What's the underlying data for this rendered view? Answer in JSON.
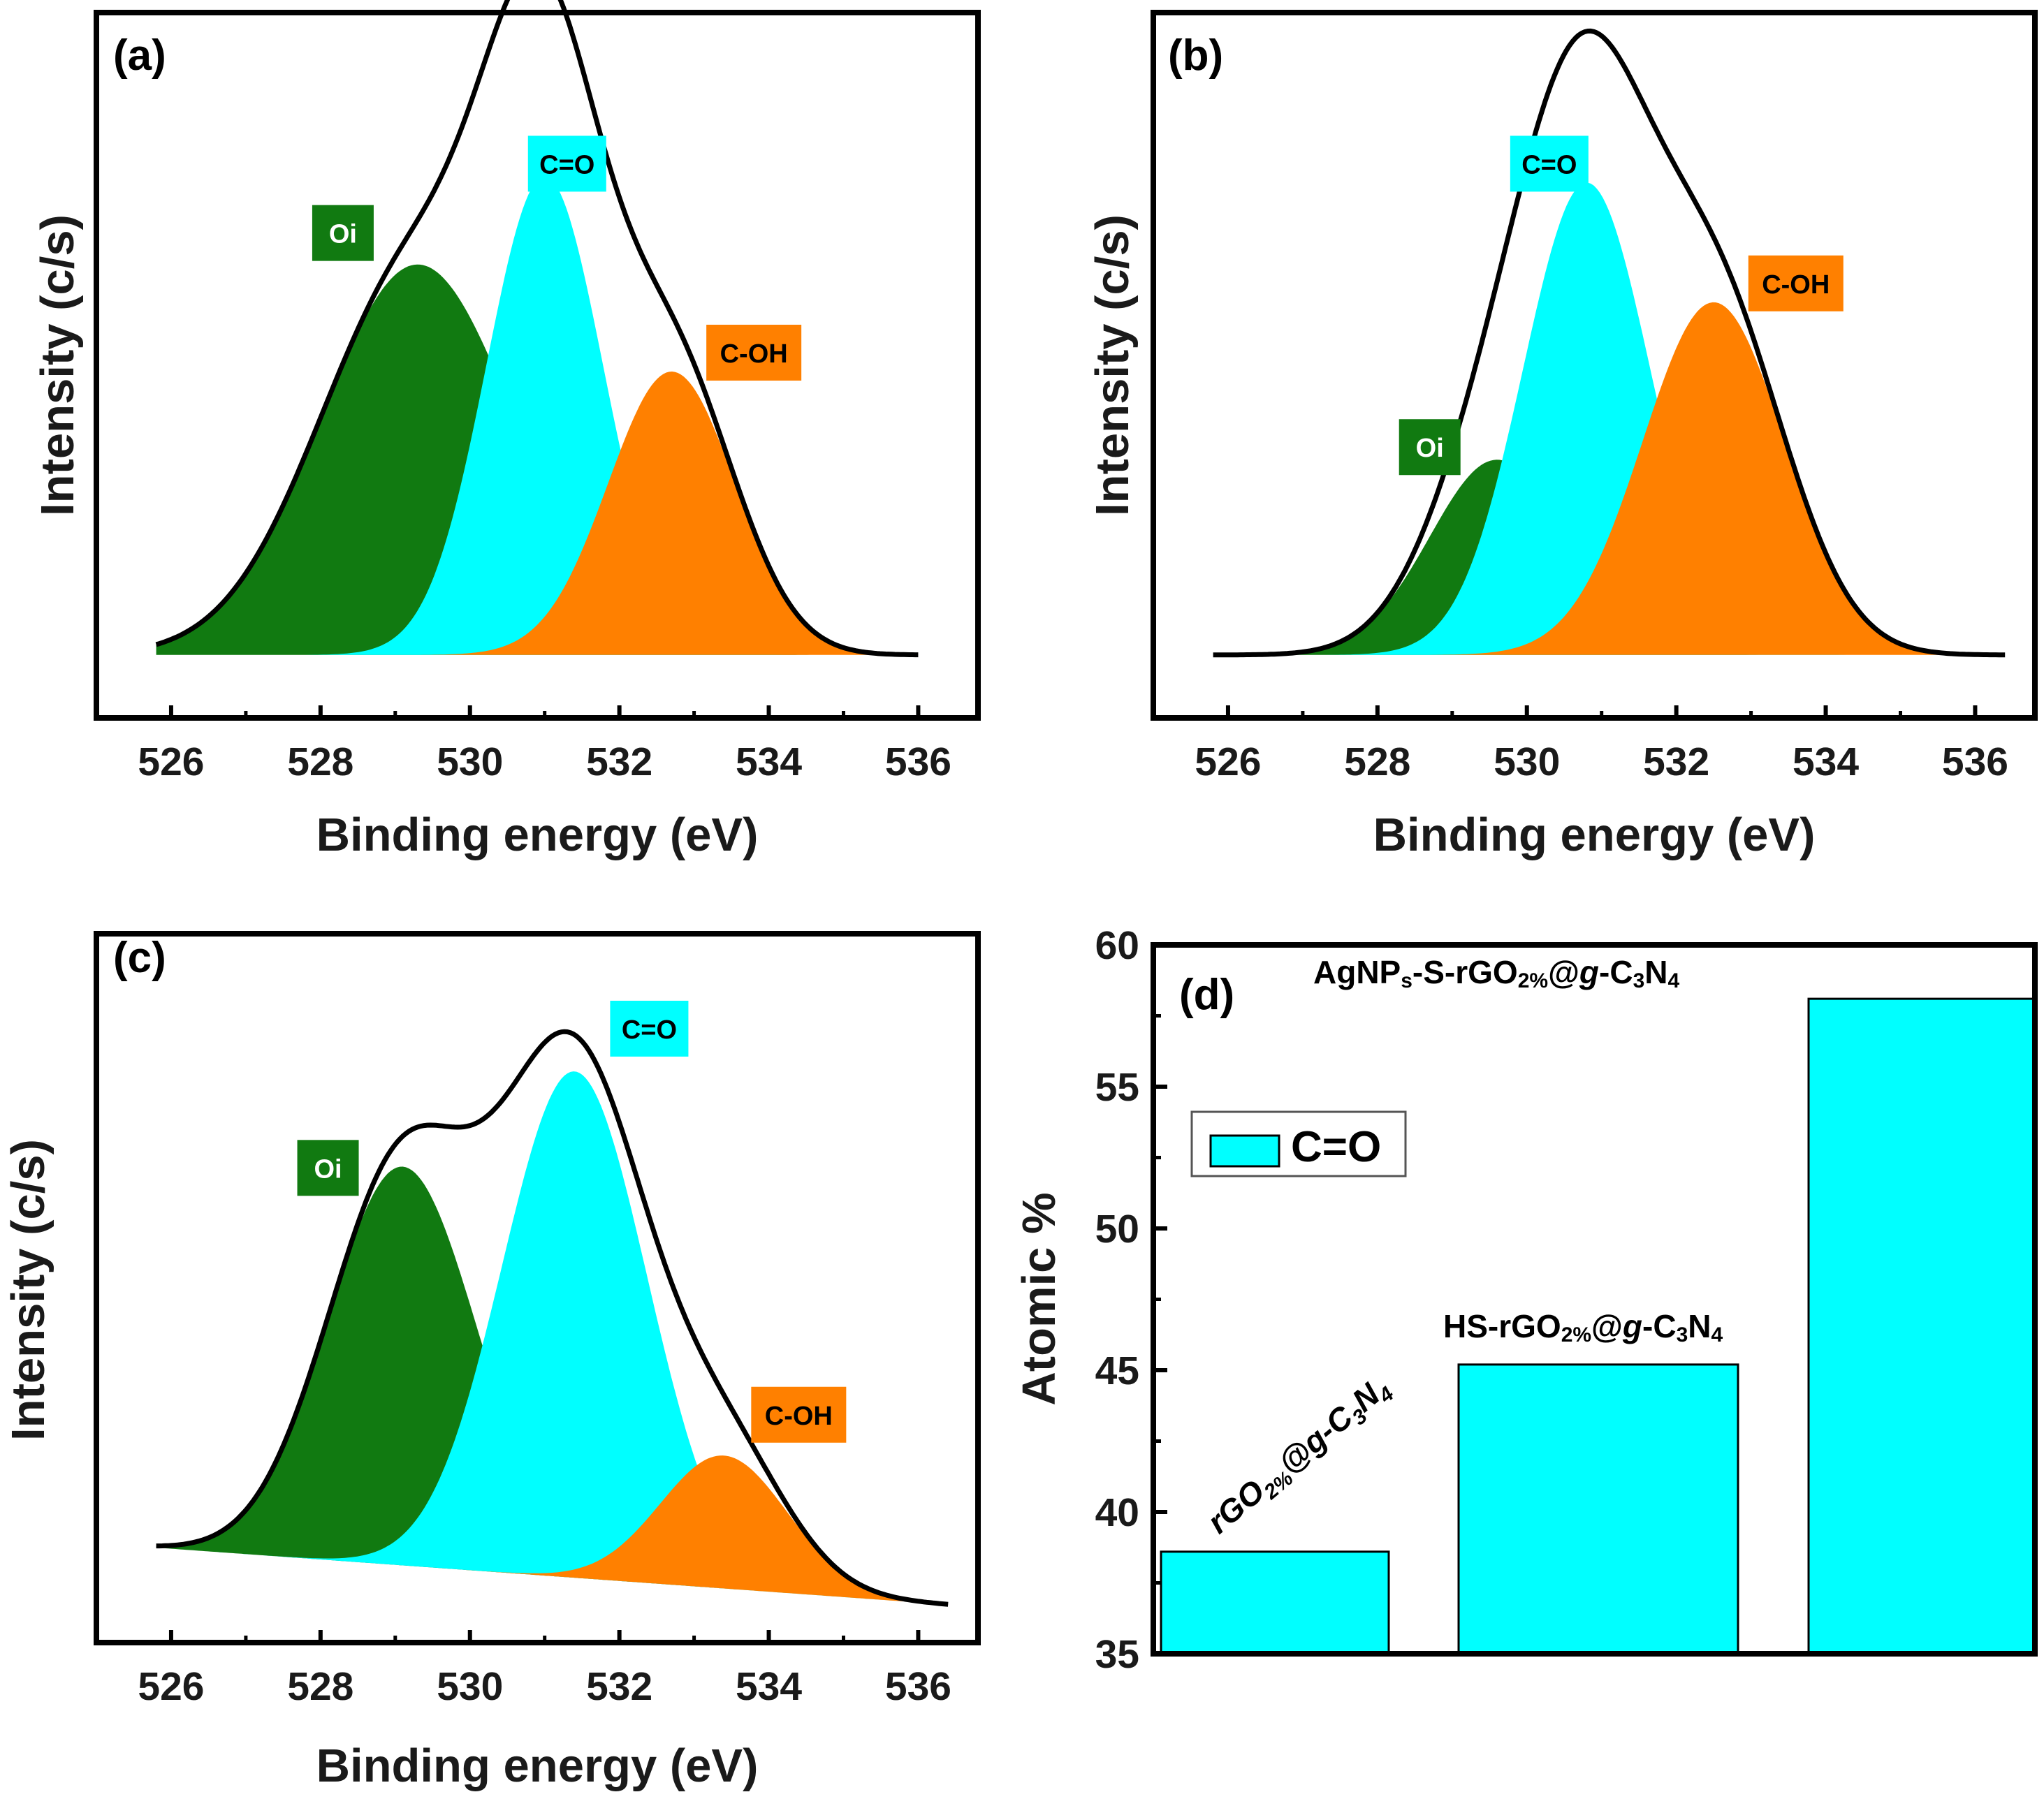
{
  "colors": {
    "oi": "#117a11",
    "co": "#00ffff",
    "coh": "#ff8000",
    "envelope": "#000000",
    "tag_text_dark": "#ffffff",
    "tag_text_light": "#000000"
  },
  "chart_data": [
    {
      "id": "a",
      "type": "area",
      "panel_label": "(a)",
      "xlabel": "Binding energy (eV)",
      "ylabel": "Intensity (c/s)",
      "xlim": [
        525,
        536.8
      ],
      "ylim": [
        -0.1,
        1.02
      ],
      "xticks": [
        "526",
        "528",
        "530",
        "532",
        "534",
        "536"
      ],
      "baseline": [
        0.0,
        0.0
      ],
      "x_range": [
        525.8,
        536
      ],
      "peaks": [
        {
          "name": "Oi",
          "color": "#117a11",
          "center": 529.3,
          "amp": 0.62,
          "sigma": 1.3
        },
        {
          "name": "C=O",
          "color": "#00ffff",
          "center": 531.0,
          "amp": 0.76,
          "sigma": 0.78
        },
        {
          "name": "C-OH",
          "color": "#ff8000",
          "center": 532.7,
          "amp": 0.45,
          "sigma": 0.85
        }
      ],
      "tags": [
        {
          "text": "Oi",
          "bg": "#117a11",
          "fg": "#ffffff",
          "x": 528.3,
          "y": 0.67
        },
        {
          "text": "C=O",
          "bg": "#00ffff",
          "fg": "#000000",
          "x": 531.3,
          "y": 0.78
        },
        {
          "text": "C-OH",
          "bg": "#ff8000",
          "fg": "#000000",
          "x": 533.8,
          "y": 0.48
        }
      ]
    },
    {
      "id": "b",
      "type": "area",
      "panel_label": "(b)",
      "xlabel": "Binding energy (eV)",
      "ylabel": "Intensity (c/s)",
      "xlim": [
        525,
        536.8
      ],
      "ylim": [
        -0.1,
        1.02
      ],
      "xticks": [
        "526",
        "528",
        "530",
        "532",
        "534",
        "536"
      ],
      "baseline": [
        0.0,
        0.0
      ],
      "x_range": [
        525.8,
        536.4
      ],
      "peaks": [
        {
          "name": "Oi",
          "color": "#117a11",
          "center": 529.6,
          "amp": 0.31,
          "sigma": 0.9
        },
        {
          "name": "C=O",
          "color": "#00ffff",
          "center": 530.8,
          "amp": 0.75,
          "sigma": 0.85
        },
        {
          "name": "C-OH",
          "color": "#ff8000",
          "center": 532.5,
          "amp": 0.56,
          "sigma": 0.95
        }
      ],
      "tags": [
        {
          "text": "Oi",
          "bg": "#117a11",
          "fg": "#ffffff",
          "x": 528.7,
          "y": 0.33
        },
        {
          "text": "C=O",
          "bg": "#00ffff",
          "fg": "#000000",
          "x": 530.3,
          "y": 0.78
        },
        {
          "text": "C-OH",
          "bg": "#ff8000",
          "fg": "#000000",
          "x": 533.6,
          "y": 0.59
        }
      ]
    },
    {
      "id": "c",
      "type": "area",
      "panel_label": "(c)",
      "xlabel": "Binding energy (eV)",
      "ylabel": "Intensity (c/s)",
      "xlim": [
        525,
        536.8
      ],
      "ylim": [
        -0.1,
        1.02
      ],
      "xticks": [
        "526",
        "528",
        "530",
        "532",
        "534",
        "536"
      ],
      "baseline": [
        0.05,
        -0.04
      ],
      "x_range": [
        525.8,
        536.4
      ],
      "peaks": [
        {
          "name": "Oi",
          "color": "#117a11",
          "center": 529.1,
          "amp": 0.63,
          "sigma": 1.0
        },
        {
          "name": "C=O",
          "color": "#00ffff",
          "center": 531.4,
          "amp": 0.8,
          "sigma": 0.97
        },
        {
          "name": "C-OH",
          "color": "#ff8000",
          "center": 533.4,
          "amp": 0.21,
          "sigma": 0.85
        }
      ],
      "tags": [
        {
          "text": "Oi",
          "bg": "#117a11",
          "fg": "#ffffff",
          "x": 528.1,
          "y": 0.65
        },
        {
          "text": "C=O",
          "bg": "#00ffff",
          "fg": "#000000",
          "x": 532.4,
          "y": 0.87
        },
        {
          "text": "C-OH",
          "bg": "#ff8000",
          "fg": "#000000",
          "x": 534.4,
          "y": 0.26
        }
      ]
    },
    {
      "id": "d",
      "type": "bar",
      "panel_label": "(d)",
      "xlabel": "",
      "ylabel": "Atomic %",
      "ylim": [
        35,
        60
      ],
      "yticks": [
        "35",
        "40",
        "45",
        "50",
        "55",
        "60"
      ],
      "legend": {
        "label": "C=O",
        "position": "top-left"
      },
      "series": [
        {
          "name": "C=O",
          "color": "#00ffff"
        }
      ],
      "bars": [
        {
          "value": 38.6,
          "label_main": "rGO",
          "label_sub1": "2%",
          "label_mid": "@",
          "label_g": "g",
          "label_c": "-C",
          "label_sub2": "3",
          "label_n": "N",
          "label_sub3": "4",
          "rotated": true
        },
        {
          "value": 45.2,
          "label_main": "HS-rGO",
          "label_sub1": "2%",
          "label_mid": "@",
          "label_g": "g",
          "label_c": "-C",
          "label_sub2": "3",
          "label_n": "N",
          "label_sub3": "4",
          "rotated": false
        },
        {
          "value": 58.1,
          "label_main": "AgNP",
          "label_sub0": "s",
          "label_main2": "-S-rGO",
          "label_sub1": "2%",
          "label_mid": "@",
          "label_g": "g",
          "label_c": "-C",
          "label_sub2": "3",
          "label_n": "N",
          "label_sub3": "4",
          "rotated": false
        }
      ]
    }
  ]
}
